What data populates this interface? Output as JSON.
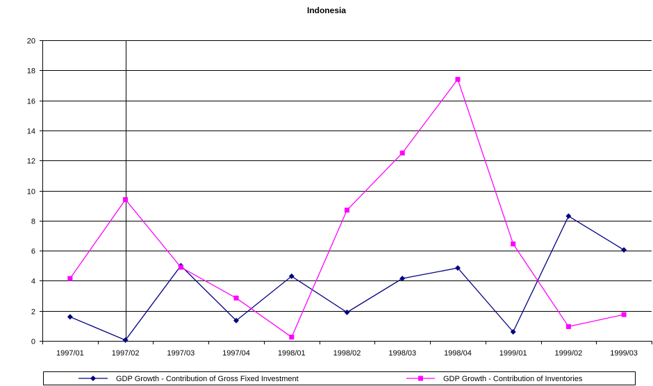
{
  "chart_data": {
    "type": "line",
    "title": "Indonesia",
    "xlabel": "",
    "ylabel": "",
    "categories": [
      "1997/01",
      "1997/02",
      "1997/03",
      "1997/04",
      "1998/01",
      "1998/02",
      "1998/03",
      "1998/04",
      "1999/01",
      "1999/02",
      "1999/03"
    ],
    "ylim": [
      0,
      20
    ],
    "yticks": [
      0,
      2,
      4,
      6,
      8,
      10,
      12,
      14,
      16,
      18,
      20
    ],
    "grid": true,
    "legend_position": "bottom",
    "series": [
      {
        "name": "GDP Growth - Contribution of Gross Fixed Investment",
        "color": "#000080",
        "marker": "diamond",
        "values": [
          1.6,
          0.05,
          5.0,
          1.35,
          4.3,
          1.9,
          4.15,
          4.85,
          0.6,
          8.3,
          6.05
        ]
      },
      {
        "name": "GDP Growth - Contribution of Inventories",
        "color": "#ff00ff",
        "marker": "square",
        "values": [
          4.15,
          9.4,
          4.9,
          2.85,
          0.25,
          8.7,
          12.5,
          17.4,
          6.45,
          0.95,
          1.75
        ]
      }
    ]
  }
}
